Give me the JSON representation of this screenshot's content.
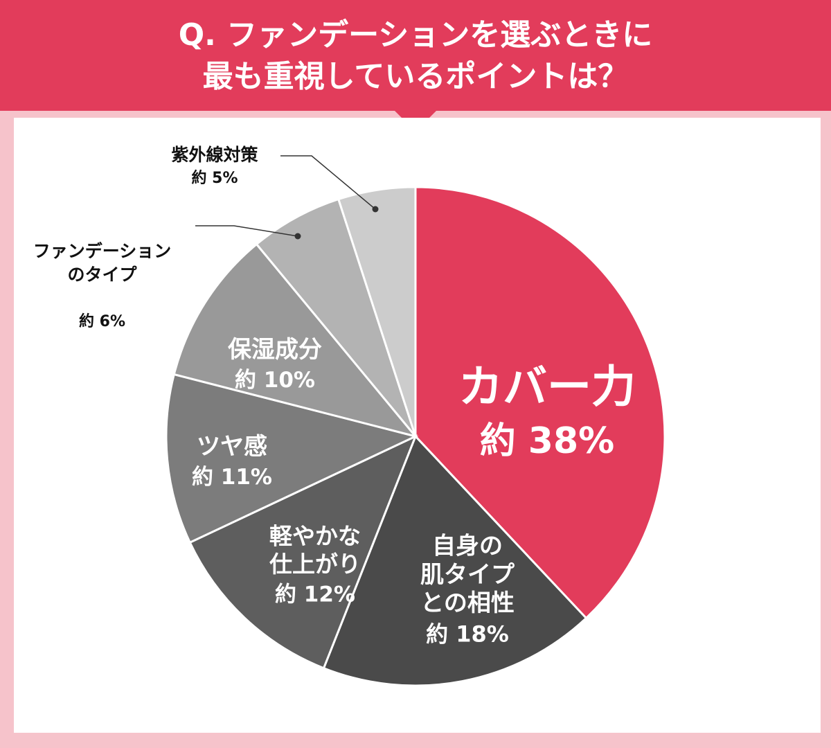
{
  "title": {
    "line1": "Q. ファンデーションを選ぶときに",
    "line2": "最も重視しているポイントは？"
  },
  "colors": {
    "banner": "#e23c5b",
    "background": "#f6c3cb",
    "panel": "#ffffff"
  },
  "chart_data": {
    "type": "pie",
    "start": "12 o'clock, clockwise",
    "slices": [
      {
        "label": "カバー力",
        "display": "約 38%",
        "value": 38,
        "color": "#e23c5b",
        "text_color": "#ffffff"
      },
      {
        "label": "自身の\n肌タイプ\nとの相性",
        "display": "約 18%",
        "value": 18,
        "color": "#4a4a4a",
        "text_color": "#ffffff"
      },
      {
        "label": "軽やかな\n仕上がり",
        "display": "約 12%",
        "value": 12,
        "color": "#5e5e5e",
        "text_color": "#ffffff"
      },
      {
        "label": "ツヤ感",
        "display": "約 11%",
        "value": 11,
        "color": "#7c7c7c",
        "text_color": "#ffffff"
      },
      {
        "label": "保湿成分",
        "display": "約 10%",
        "value": 10,
        "color": "#999999",
        "text_color": "#ffffff"
      },
      {
        "label": "ファンデーション\nのタイプ",
        "display": "約 6%",
        "value": 6,
        "color": "#b3b3b3",
        "text_color": "#111111"
      },
      {
        "label": "紫外線対策",
        "display": "約 5%",
        "value": 5,
        "color": "#cccccc",
        "text_color": "#111111"
      }
    ]
  }
}
